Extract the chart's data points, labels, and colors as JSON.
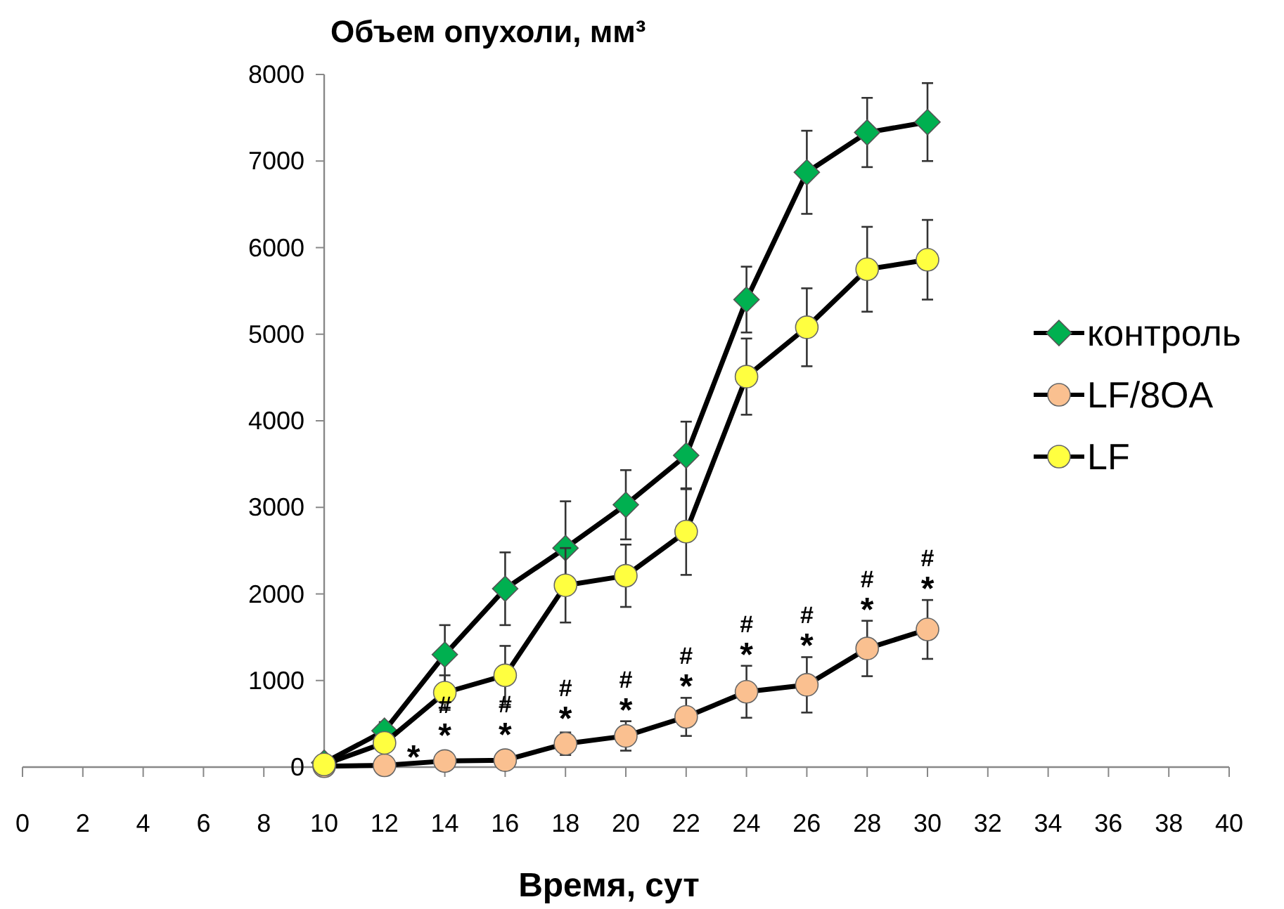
{
  "chart_data": {
    "type": "line",
    "title": "Объем опухоли, мм³",
    "xlabel": "Время, сут",
    "x": [
      10,
      12,
      14,
      16,
      18,
      20,
      22,
      24,
      26,
      28,
      30
    ],
    "series": [
      {
        "name": "контроль",
        "color": "#00b050",
        "marker": "diamond",
        "values": [
          50,
          420,
          1300,
          2060,
          2530,
          3030,
          3600,
          5400,
          6870,
          7330,
          7450
        ],
        "errors": [
          null,
          100,
          340,
          420,
          540,
          400,
          390,
          380,
          480,
          400,
          450
        ]
      },
      {
        "name": "LF/8OA",
        "color": "#fac090",
        "marker": "circle",
        "values": [
          10,
          20,
          70,
          80,
          270,
          360,
          580,
          870,
          950,
          1370,
          1590
        ],
        "errors": [
          null,
          null,
          null,
          null,
          130,
          170,
          220,
          300,
          320,
          320,
          340
        ]
      },
      {
        "name": "LF",
        "color": "#ffff40",
        "marker": "circle",
        "values": [
          30,
          280,
          860,
          1060,
          2100,
          2210,
          2720,
          4510,
          5080,
          5750,
          5860
        ],
        "errors": [
          null,
          null,
          200,
          340,
          430,
          360,
          500,
          440,
          450,
          490,
          460
        ]
      }
    ],
    "xlim": [
      0,
      40
    ],
    "xticks": [
      0,
      2,
      4,
      6,
      8,
      10,
      12,
      14,
      16,
      18,
      20,
      22,
      24,
      26,
      28,
      30,
      32,
      34,
      36,
      38,
      40
    ],
    "ylim": [
      0,
      8000
    ],
    "yticks": [
      0,
      1000,
      2000,
      3000,
      4000,
      5000,
      6000,
      7000,
      8000
    ],
    "grid": false,
    "legend": "right",
    "line_style": "solid",
    "annotations": [
      {
        "text": "*",
        "x": 12,
        "y": 20
      },
      {
        "text": "*",
        "x": 14,
        "y": 70
      },
      {
        "text": "#",
        "x": 14,
        "y": 70
      },
      {
        "text": "*",
        "x": 16,
        "y": 80
      },
      {
        "text": "#",
        "x": 16,
        "y": 80
      },
      {
        "text": "*",
        "x": 18,
        "y": 270
      },
      {
        "text": "#",
        "x": 18,
        "y": 270
      },
      {
        "text": "*",
        "x": 20,
        "y": 360
      },
      {
        "text": "#",
        "x": 20,
        "y": 360
      },
      {
        "text": "*",
        "x": 22,
        "y": 580
      },
      {
        "text": "#",
        "x": 22,
        "y": 580
      },
      {
        "text": "*",
        "x": 24,
        "y": 870
      },
      {
        "text": "#",
        "x": 24,
        "y": 870
      },
      {
        "text": "*",
        "x": 26,
        "y": 950
      },
      {
        "text": "#",
        "x": 26,
        "y": 950
      },
      {
        "text": "*",
        "x": 28,
        "y": 1370
      },
      {
        "text": "#",
        "x": 28,
        "y": 1370
      },
      {
        "text": "*",
        "x": 30,
        "y": 1590
      },
      {
        "text": "#",
        "x": 30,
        "y": 1590
      }
    ]
  }
}
